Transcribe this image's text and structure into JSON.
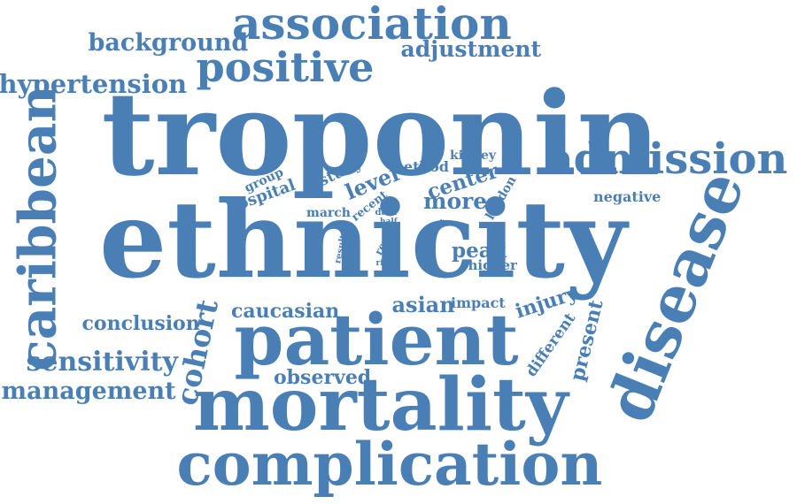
{
  "color": "#4a7fb5",
  "words": [
    {
      "text": "troponin",
      "weight": 1.0
    },
    {
      "text": "ethnicity",
      "weight": 0.98
    },
    {
      "text": "patient",
      "weight": 0.62
    },
    {
      "text": "mortality",
      "weight": 0.6
    },
    {
      "text": "complication",
      "weight": 0.5
    },
    {
      "text": "disease",
      "weight": 0.48
    },
    {
      "text": "caribbean",
      "weight": 0.4
    },
    {
      "text": "association",
      "weight": 0.36
    },
    {
      "text": "positive",
      "weight": 0.36
    },
    {
      "text": "admission",
      "weight": 0.36
    },
    {
      "text": "hypertension",
      "weight": 0.22
    },
    {
      "text": "background",
      "weight": 0.22
    },
    {
      "text": "adjustment",
      "weight": 0.2
    },
    {
      "text": "sensitivity",
      "weight": 0.22
    },
    {
      "text": "management",
      "weight": 0.22
    },
    {
      "text": "cohort",
      "weight": 0.2
    },
    {
      "text": "conclusion",
      "weight": 0.18
    },
    {
      "text": "caucasian",
      "weight": 0.16
    },
    {
      "text": "observed",
      "weight": 0.16
    },
    {
      "text": "asian",
      "weight": 0.16
    },
    {
      "text": "injury",
      "weight": 0.16
    },
    {
      "text": "present",
      "weight": 0.15
    },
    {
      "text": "different",
      "weight": 0.12
    },
    {
      "text": "impact",
      "weight": 0.12
    },
    {
      "text": "peak",
      "weight": 0.16
    },
    {
      "text": "higher",
      "weight": 0.12
    },
    {
      "text": "more",
      "weight": 0.18
    },
    {
      "text": "center",
      "weight": 0.18
    },
    {
      "text": "level",
      "weight": 0.18
    },
    {
      "text": "study",
      "weight": 0.12
    },
    {
      "text": "method",
      "weight": 0.12
    },
    {
      "text": "kidney",
      "weight": 0.1
    },
    {
      "text": "negative",
      "weight": 0.12
    },
    {
      "text": "london",
      "weight": 0.1
    },
    {
      "text": "hospital",
      "weight": 0.12
    },
    {
      "text": "group",
      "weight": 0.08
    },
    {
      "text": "march",
      "weight": 0.1
    },
    {
      "text": "recent",
      "weight": 0.08
    },
    {
      "text": "data",
      "weight": 0.07
    },
    {
      "text": "half",
      "weight": 0.06
    },
    {
      "text": "report",
      "weight": 0.08
    },
    {
      "text": "event",
      "weight": 0.07
    },
    {
      "text": "result",
      "weight": 0.07
    },
    {
      "text": "risk",
      "weight": 0.06
    }
  ]
}
